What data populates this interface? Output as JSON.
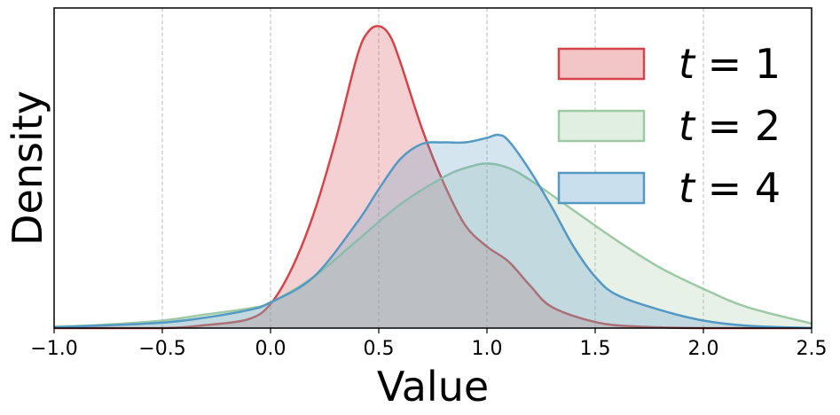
{
  "chart_data": {
    "type": "area",
    "title": "",
    "xlabel": "Value",
    "ylabel": "Density",
    "xlim": [
      -1.0,
      2.5
    ],
    "ylim": [
      0,
      1.06
    ],
    "xticks": [
      -1.0,
      -0.5,
      0.0,
      0.5,
      1.0,
      1.5,
      2.0,
      2.5
    ],
    "xtick_labels": [
      "−1.0",
      "−0.5",
      "0.0",
      "0.5",
      "1.0",
      "1.5",
      "2.0",
      "2.5"
    ],
    "yticks_shown": false,
    "grid": "vertical dashed at x ticks",
    "legend_position": "top-right",
    "series": [
      {
        "name_prefix": "t",
        "name_suffix": " = 1",
        "color": "#d6444a",
        "fill": "#f2c5c7",
        "x": [
          -1.0,
          -0.5,
          -0.3,
          -0.1,
          0.0,
          0.1,
          0.2,
          0.3,
          0.4,
          0.45,
          0.5,
          0.55,
          0.6,
          0.7,
          0.8,
          0.9,
          1.0,
          1.1,
          1.2,
          1.3,
          1.5,
          1.7,
          2.0,
          2.5
        ],
        "y": [
          0.0,
          0.0,
          0.01,
          0.03,
          0.08,
          0.2,
          0.38,
          0.62,
          0.9,
          0.98,
          1.0,
          0.97,
          0.88,
          0.66,
          0.48,
          0.34,
          0.27,
          0.22,
          0.14,
          0.07,
          0.02,
          0.005,
          0.0,
          0.0
        ]
      },
      {
        "name_prefix": "t",
        "name_suffix": " = 2",
        "color": "#9ec9a5",
        "fill": "#e1efe3",
        "x": [
          -1.0,
          -0.8,
          -0.5,
          -0.3,
          -0.1,
          0.0,
          0.2,
          0.4,
          0.6,
          0.8,
          0.9,
          1.0,
          1.1,
          1.2,
          1.4,
          1.6,
          1.8,
          2.0,
          2.2,
          2.5
        ],
        "y": [
          0.005,
          0.01,
          0.025,
          0.045,
          0.065,
          0.085,
          0.17,
          0.29,
          0.41,
          0.5,
          0.53,
          0.545,
          0.53,
          0.49,
          0.39,
          0.29,
          0.2,
          0.13,
          0.07,
          0.015
        ]
      },
      {
        "name_prefix": "t",
        "name_suffix": " = 4",
        "color": "#5499c4",
        "fill": "#c9dfee",
        "x": [
          -1.0,
          -0.8,
          -0.5,
          -0.3,
          -0.1,
          0.0,
          0.2,
          0.4,
          0.5,
          0.6,
          0.7,
          0.8,
          0.9,
          1.0,
          1.05,
          1.1,
          1.2,
          1.3,
          1.4,
          1.5,
          1.6,
          1.8,
          2.0,
          2.2,
          2.5
        ],
        "y": [
          0.003,
          0.008,
          0.018,
          0.035,
          0.06,
          0.085,
          0.17,
          0.35,
          0.46,
          0.56,
          0.61,
          0.615,
          0.615,
          0.63,
          0.64,
          0.62,
          0.52,
          0.4,
          0.27,
          0.17,
          0.11,
          0.06,
          0.025,
          0.008,
          0.0
        ]
      }
    ]
  }
}
